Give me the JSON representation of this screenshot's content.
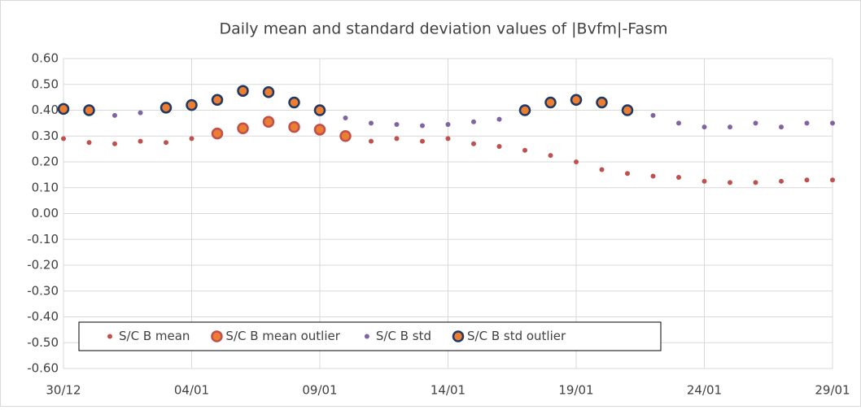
{
  "chart_data": {
    "type": "scatter",
    "title": "Daily mean and standard deviation values of |Bvfm|-Fasm",
    "categories": [
      "30/12",
      null,
      null,
      null,
      null,
      "04/01",
      null,
      null,
      null,
      null,
      "09/01",
      null,
      null,
      null,
      null,
      "14/01",
      null,
      null,
      null,
      null,
      "19/01",
      null,
      null,
      null,
      null,
      "24/01",
      null,
      null,
      null,
      null,
      "29/01"
    ],
    "series": [
      {
        "name": "S/C B mean",
        "color": "#c0504d",
        "values": [
          0.29,
          0.275,
          0.27,
          0.28,
          0.275,
          0.29,
          null,
          null,
          null,
          null,
          null,
          null,
          0.28,
          0.29,
          0.28,
          0.29,
          0.27,
          0.26,
          0.245,
          0.225,
          0.2,
          0.17,
          0.155,
          0.145,
          0.14,
          0.125,
          0.12,
          0.12,
          0.125,
          0.13,
          0.13
        ]
      },
      {
        "name": "S/C B mean outlier",
        "color": "#ed7d31",
        "edgecolor": "#c0504d",
        "values": [
          null,
          null,
          null,
          null,
          null,
          null,
          0.31,
          0.33,
          0.355,
          0.335,
          0.325,
          0.3,
          null,
          null,
          null,
          null,
          null,
          null,
          null,
          null,
          null,
          null,
          null,
          null,
          null,
          null,
          null,
          null,
          null,
          null,
          null
        ]
      },
      {
        "name": "S/C B std",
        "color": "#8064a2",
        "values": [
          null,
          null,
          0.38,
          0.39,
          null,
          null,
          null,
          null,
          null,
          null,
          null,
          0.37,
          0.35,
          0.345,
          0.34,
          0.345,
          0.355,
          0.365,
          null,
          null,
          null,
          null,
          null,
          0.38,
          0.35,
          0.335,
          0.335,
          0.35,
          0.335,
          0.35,
          0.35
        ]
      },
      {
        "name": "S/C B std outlier",
        "color": "#ed7d31",
        "edgecolor": "#1f3864",
        "values": [
          0.405,
          0.4,
          null,
          null,
          0.41,
          0.42,
          0.44,
          0.475,
          0.47,
          0.43,
          0.4,
          null,
          null,
          null,
          null,
          null,
          null,
          null,
          0.4,
          0.43,
          0.44,
          0.43,
          0.4,
          null,
          null,
          null,
          null,
          null,
          null,
          null,
          null
        ]
      }
    ],
    "ylim": [
      -0.6,
      0.6
    ],
    "yticks": [
      {
        "value": -0.6,
        "label": "-0.60"
      },
      {
        "value": -0.5,
        "label": "-0.50"
      },
      {
        "value": -0.4,
        "label": "-0.40"
      },
      {
        "value": -0.3,
        "label": "-0.30"
      },
      {
        "value": -0.2,
        "label": "-0.20"
      },
      {
        "value": -0.1,
        "label": "-0.10"
      },
      {
        "value": 0,
        "label": "0.00"
      },
      {
        "value": 0.1,
        "label": "0.10"
      },
      {
        "value": 0.2,
        "label": "0.20"
      },
      {
        "value": 0.3,
        "label": "0.30"
      },
      {
        "value": 0.4,
        "label": "0.40"
      },
      {
        "value": 0.5,
        "label": "0.50"
      },
      {
        "value": 0.6,
        "label": "0.60"
      }
    ],
    "grid": true,
    "legend": "lower left"
  }
}
